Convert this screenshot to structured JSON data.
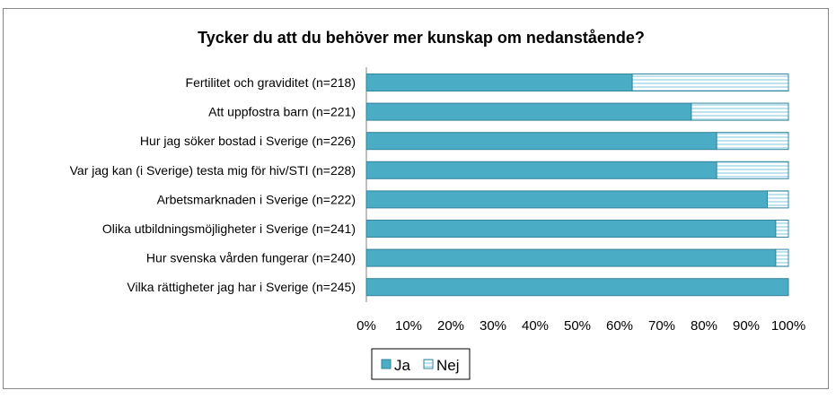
{
  "chart_data": {
    "type": "bar",
    "orientation": "horizontal",
    "stacked": "percent",
    "title": "Tycker du att du behöver mer kunskap om nedanstående?",
    "xlabel": "",
    "ylabel": "",
    "categories": [
      "Fertilitet och graviditet (n=218)",
      "Att uppfostra barn (n=221)",
      "Hur jag söker bostad i Sverige (n=226)",
      "Var jag kan (i Sverige) testa mig för hiv/STI (n=228)",
      "Arbetsmarknaden i Sverige (n=222)",
      "Olika utbildningsmöjligheter i Sverige (n=241)",
      "Hur svenska vården fungerar (n=240)",
      "Vilka rättigheter jag har i Sverige (n=245)"
    ],
    "series": [
      {
        "name": "Ja",
        "color": "#4BACC6",
        "values": [
          63,
          77,
          83,
          83,
          95,
          97,
          97,
          100
        ]
      },
      {
        "name": "Nej",
        "color": "#DAEEF3",
        "pattern": "horizontal-stripes",
        "values": [
          37,
          23,
          17,
          17,
          5,
          3,
          3,
          0
        ]
      }
    ],
    "xlim": [
      0,
      100
    ],
    "xticks": [
      "0%",
      "10%",
      "20%",
      "30%",
      "40%",
      "50%",
      "60%",
      "70%",
      "80%",
      "90%",
      "100%"
    ],
    "grid": false,
    "legend": "bottom-center"
  }
}
